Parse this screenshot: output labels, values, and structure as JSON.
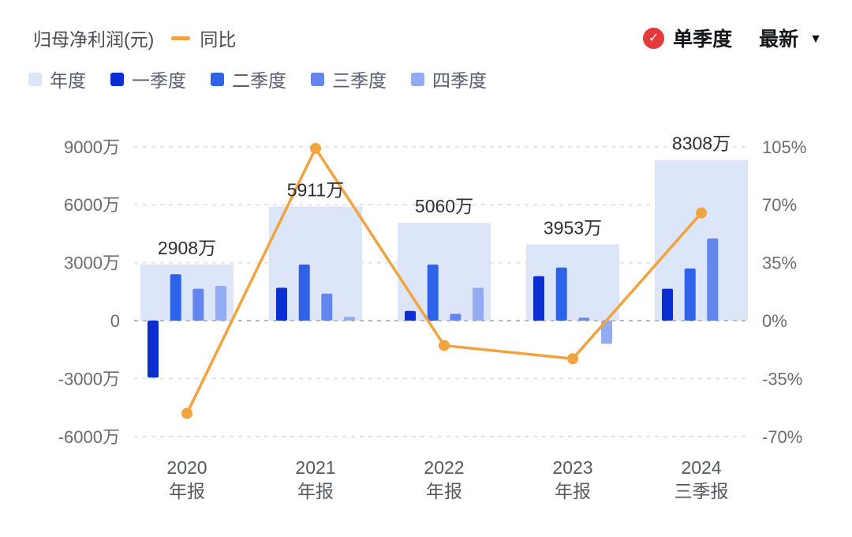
{
  "header": {
    "title": "归母净利润(元)",
    "line_legend_label": "同比",
    "mode_label": "单季度",
    "period_label": "最新",
    "check_icon": "✓",
    "chevron_icon": "▼"
  },
  "legend": {
    "items": [
      {
        "label": "年度",
        "color": "#dde5f8"
      },
      {
        "label": "一季度",
        "color": "#0a2ed2"
      },
      {
        "label": "二季度",
        "color": "#2e62e9"
      },
      {
        "label": "三季度",
        "color": "#6286ee"
      },
      {
        "label": "四季度",
        "color": "#93abf3"
      }
    ]
  },
  "chart_data": {
    "type": "bar",
    "title": "归母净利润(元)",
    "categories": [
      {
        "line1": "2020",
        "line2": "年报"
      },
      {
        "line1": "2021",
        "line2": "年报"
      },
      {
        "line1": "2022",
        "line2": "年报"
      },
      {
        "line1": "2023",
        "line2": "年报"
      },
      {
        "line1": "2024",
        "line2": "三季报"
      }
    ],
    "annual_series": {
      "name": "年度",
      "color": "#dde5f8",
      "values_wan": [
        2908,
        5911,
        5060,
        3953,
        8308
      ],
      "labels": [
        "2908万",
        "5911万",
        "5060万",
        "3953万",
        "8308万"
      ]
    },
    "quarter_series": [
      {
        "name": "一季度",
        "color": "#0a2ed2",
        "values_wan": [
          -2950,
          1700,
          500,
          2300,
          1650
        ]
      },
      {
        "name": "二季度",
        "color": "#2e62e9",
        "values_wan": [
          2400,
          2900,
          2900,
          2750,
          2700
        ]
      },
      {
        "name": "三季度",
        "color": "#6286ee",
        "values_wan": [
          1650,
          1400,
          350,
          150,
          4250
        ]
      },
      {
        "name": "四季度",
        "color": "#93abf3",
        "values_wan": [
          1800,
          200,
          1700,
          -1200,
          null
        ]
      }
    ],
    "line_series": {
      "name": "同比",
      "color": "#f0a33f",
      "values_pct": [
        -56,
        104,
        -15,
        -23,
        65
      ]
    },
    "left_axis": {
      "ticks": [
        "9000万",
        "6000万",
        "3000万",
        "0",
        "-3000万",
        "-6000万"
      ],
      "tick_values": [
        9000,
        6000,
        3000,
        0,
        -3000,
        -6000
      ],
      "range": [
        -6000,
        9000
      ]
    },
    "right_axis": {
      "ticks": [
        "105%",
        "70%",
        "35%",
        "0%",
        "-35%",
        "-70%"
      ],
      "tick_values": [
        105,
        70,
        35,
        0,
        -35,
        -70
      ],
      "range": [
        -70,
        105
      ]
    },
    "grid": true,
    "legend_position": "top-left"
  }
}
